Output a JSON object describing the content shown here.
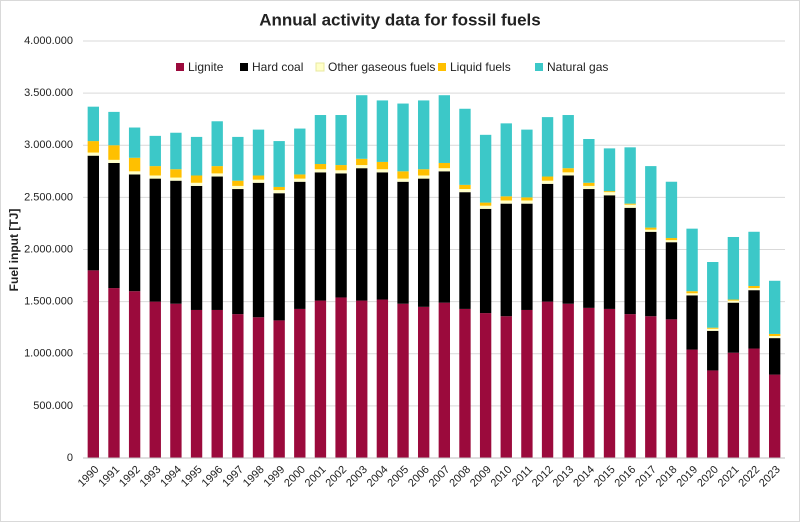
{
  "chart_data": {
    "type": "stacked-bar",
    "title": "Annual activity data for fossil fuels",
    "y_label": "Fuel input [TJ]",
    "categories": [
      "1990",
      "1991",
      "1992",
      "1993",
      "1994",
      "1995",
      "1996",
      "1997",
      "1998",
      "1999",
      "2000",
      "2001",
      "2002",
      "2003",
      "2004",
      "2005",
      "2006",
      "2007",
      "2008",
      "2009",
      "2010",
      "2011",
      "2012",
      "2013",
      "2014",
      "2015",
      "2016",
      "2017",
      "2018",
      "2019",
      "2020",
      "2021",
      "2022",
      "2023"
    ],
    "series": [
      {
        "name": "Lignite",
        "color": "#9b0a3c",
        "values": [
          1800000,
          1630000,
          1600000,
          1500000,
          1480000,
          1420000,
          1420000,
          1380000,
          1350000,
          1320000,
          1430000,
          1510000,
          1540000,
          1510000,
          1520000,
          1480000,
          1450000,
          1490000,
          1430000,
          1390000,
          1360000,
          1420000,
          1500000,
          1480000,
          1440000,
          1430000,
          1380000,
          1360000,
          1330000,
          1040000,
          840000,
          1010000,
          1050000,
          800000
        ]
      },
      {
        "name": "Hard coal",
        "color": "#000000",
        "values": [
          1100000,
          1200000,
          1120000,
          1180000,
          1180000,
          1190000,
          1280000,
          1200000,
          1290000,
          1220000,
          1220000,
          1230000,
          1190000,
          1270000,
          1220000,
          1170000,
          1230000,
          1260000,
          1120000,
          1000000,
          1080000,
          1020000,
          1130000,
          1230000,
          1140000,
          1090000,
          1020000,
          810000,
          740000,
          520000,
          380000,
          480000,
          560000,
          350000
        ]
      },
      {
        "name": "Other gaseous fuels",
        "color": "#ffffc8",
        "values": [
          30000,
          30000,
          30000,
          30000,
          30000,
          30000,
          30000,
          30000,
          30000,
          30000,
          30000,
          30000,
          30000,
          30000,
          30000,
          30000,
          30000,
          30000,
          30000,
          30000,
          30000,
          30000,
          30000,
          30000,
          30000,
          30000,
          30000,
          20000,
          20000,
          20000,
          20000,
          20000,
          20000,
          20000
        ]
      },
      {
        "name": "Liquid fuels",
        "color": "#ffc000",
        "values": [
          110000,
          140000,
          130000,
          90000,
          80000,
          70000,
          70000,
          50000,
          40000,
          30000,
          40000,
          50000,
          50000,
          60000,
          70000,
          70000,
          60000,
          50000,
          40000,
          30000,
          40000,
          30000,
          40000,
          40000,
          30000,
          10000,
          10000,
          20000,
          20000,
          20000,
          10000,
          10000,
          20000,
          20000
        ]
      },
      {
        "name": "Natural gas",
        "color": "#3cc8c8",
        "values": [
          330000,
          320000,
          290000,
          290000,
          350000,
          370000,
          430000,
          420000,
          440000,
          440000,
          440000,
          470000,
          480000,
          610000,
          590000,
          650000,
          660000,
          650000,
          730000,
          650000,
          700000,
          650000,
          570000,
          510000,
          420000,
          410000,
          540000,
          590000,
          540000,
          600000,
          630000,
          600000,
          520000,
          510000
        ]
      }
    ],
    "ylim": [
      0,
      4000000
    ],
    "yticks": [
      0,
      {
        "value": 500000,
        "label": "500.000"
      },
      {
        "value": 1000000,
        "label": "1.000.000"
      },
      {
        "value": 1500000,
        "label": "1.500.000"
      },
      {
        "value": 2000000,
        "label": "2.000.000"
      },
      {
        "value": 2500000,
        "label": "2.500.000"
      },
      {
        "value": 3000000,
        "label": "3.000.000"
      },
      {
        "value": 3500000,
        "label": "3.500.000"
      },
      {
        "value": 4000000,
        "label": "4.000.000"
      }
    ],
    "grid": true,
    "legend": "top"
  }
}
